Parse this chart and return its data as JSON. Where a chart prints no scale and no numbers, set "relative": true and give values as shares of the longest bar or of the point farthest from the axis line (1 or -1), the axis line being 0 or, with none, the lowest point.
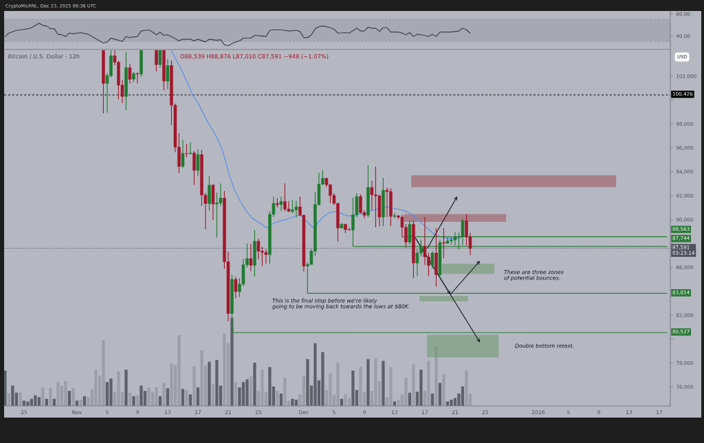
{
  "chart_data": [
    {
      "type": "line",
      "annotations": [
        "CryptoMichNL, Dec 23, 2025 08:36 UTC"
      ],
      "x": [
        "2025-10-22T12:00",
        "2025-10-23T00:00",
        "2025-10-24T00:00",
        "2025-10-24T12:00",
        "2025-10-25T12:00",
        "2025-10-26T00:00",
        "2025-10-26T12:00",
        "2025-10-27T00:00",
        "2025-10-27T12:00",
        "2025-10-28T00:00",
        "2025-10-28T12:00",
        "2025-10-29T00:00",
        "2025-10-29T12:00",
        "2025-10-30T00:00",
        "2025-10-30T12:00",
        "2025-10-31T00:00",
        "2025-10-31T12:00",
        "2025-11-01T12:00",
        "2025-11-02T12:00",
        "2025-11-03T00:00",
        "2025-11-03T12:00",
        "2025-11-04T00:00",
        "2025-11-04T12:00",
        "2025-11-05T00:00",
        "2025-11-05T12:00",
        "2025-11-06T00:00",
        "2025-11-07T00:00",
        "2025-11-07T12:00",
        "2025-11-08T00:00",
        "2025-11-08T12:00",
        "2025-11-09T00:00",
        "2025-11-09T12:00",
        "2025-11-10T12:00",
        "2025-11-11T00:00",
        "2025-11-11T12:00",
        "2025-11-12T00:00",
        "2025-11-12T12:00",
        "2025-11-13T00:00",
        "2025-11-14T00:00",
        "2025-11-14T12:00",
        "2025-11-15T00:00",
        "2025-11-16T00:00",
        "2025-11-16T12:00",
        "2025-11-17T00:00",
        "2025-11-18T00:00",
        "2025-11-18T12:00",
        "2025-11-19T12:00",
        "2025-11-20T00:00",
        "2025-11-20T12:00",
        "2025-11-21T00:00",
        "2025-11-21T12:00",
        "2025-11-22T00:00",
        "2025-11-22T12:00",
        "2025-11-23T00:00",
        "2025-11-24T00:00",
        "2025-11-24T12:00",
        "2025-11-25T12:00",
        "2025-11-26T00:00",
        "2025-11-26T12:00",
        "2025-11-27T00:00",
        "2025-11-28T00:00",
        "2025-11-29T00:00",
        "2025-11-30T00:00",
        "2025-11-30T12:00",
        "2025-12-01T00:00",
        "2025-12-01T12:00",
        "2025-12-02T00:00",
        "2025-12-02T12:00",
        "2025-12-03T00:00",
        "2025-12-03T12:00",
        "2025-12-04T12:00",
        "2025-12-05T00:00",
        "2025-12-05T12:00",
        "2025-12-06T12:00",
        "2025-12-07T00:00",
        "2025-12-08T00:00",
        "2025-12-08T12:00",
        "2025-12-09T00:00",
        "2025-12-09T12:00",
        "2025-12-10T00:00",
        "2025-12-10T12:00",
        "2025-12-11T00:00",
        "2025-12-11T12:00",
        "2025-12-12T00:00",
        "2025-12-12T12:00",
        "2025-12-13T12:00",
        "2025-12-14T00:00",
        "2025-12-14T12:00",
        "2025-12-15T00:00",
        "2025-12-15T12:00",
        "2025-12-16T00:00",
        "2025-12-17T00:00",
        "2025-12-17T12:00",
        "2025-12-18T00:00",
        "2025-12-18T12:00",
        "2025-12-19T00:00",
        "2025-12-20T12:00",
        "2025-12-21T12:00",
        "2025-12-22T00:00",
        "2025-12-22T12:00",
        "2025-12-23T00:00"
      ],
      "series": [
        {
          "color": "#3d4048",
          "values": [
            39,
            45,
            50,
            51,
            53,
            55,
            59,
            63,
            59,
            58,
            53,
            53,
            43,
            42,
            39,
            45,
            44,
            46,
            43,
            39,
            35,
            31,
            27,
            29,
            36,
            34,
            30,
            39,
            37,
            38,
            39,
            49,
            51,
            47,
            42,
            47,
            41,
            42,
            35,
            31,
            34,
            34,
            31,
            34,
            29,
            34,
            32,
            33,
            24,
            22,
            26,
            29,
            31,
            36,
            36,
            41,
            40,
            39,
            50,
            51,
            51,
            49,
            50,
            48,
            37,
            37,
            42,
            53,
            57,
            58,
            55,
            52,
            45,
            46,
            45,
            54,
            49,
            49,
            56,
            54,
            54,
            48,
            55,
            55,
            47,
            47,
            45,
            42,
            46,
            39,
            43,
            41,
            39,
            43,
            39,
            47,
            47,
            49,
            54,
            51,
            45
          ]
        }
      ],
      "xlim": [
        "2025-10-22T09:00",
        "2026-01-18T11:00"
      ],
      "ylim": [
        15.4,
        85.3
      ],
      "yticks": [
        {
          "value": 80,
          "label": "80.00"
        },
        {
          "value": 40,
          "label": "40.00"
        }
      ],
      "tick_labels": "y",
      "bands": [
        {
          "axis": "y",
          "from": 30,
          "to": 70,
          "color": "#979aa3"
        }
      ],
      "ref_lines": [
        {
          "axis": "y",
          "value": 70,
          "color": "#8c8f98",
          "line_style": "dashed"
        },
        {
          "axis": "y",
          "value": 30,
          "color": "#8c8f98",
          "line_style": "dashed"
        }
      ]
    },
    {
      "type": "candlestick",
      "title": "Bitcoin / U.S. Dollar · 12h",
      "subtitle": "O88,539 H88,876 L87,010 C87,591 −948 (−1.07%)",
      "ylabel": "USD",
      "x": [
        "2025-11-04T12:00",
        "2025-11-05T00:00",
        "2025-11-05T12:00",
        "2025-11-06T00:00",
        "2025-11-06T12:00",
        "2025-11-07T00:00",
        "2025-11-07T12:00",
        "2025-11-08T00:00",
        "2025-11-08T12:00",
        "2025-11-09T00:00",
        "2025-11-09T12:00",
        "2025-11-11T12:00",
        "2025-11-12T00:00",
        "2025-11-12T12:00",
        "2025-11-13T00:00",
        "2025-11-13T12:00",
        "2025-11-14T00:00",
        "2025-11-14T12:00",
        "2025-11-15T00:00",
        "2025-11-15T12:00",
        "2025-11-16T00:00",
        "2025-11-16T12:00",
        "2025-11-17T00:00",
        "2025-11-17T12:00",
        "2025-11-18T00:00",
        "2025-11-18T12:00",
        "2025-11-19T00:00",
        "2025-11-19T12:00",
        "2025-11-20T00:00",
        "2025-11-20T12:00",
        "2025-11-21T00:00",
        "2025-11-21T12:00",
        "2025-11-22T00:00",
        "2025-11-22T12:00",
        "2025-11-23T00:00",
        "2025-11-23T12:00",
        "2025-11-24T00:00",
        "2025-11-24T12:00",
        "2025-11-25T00:00",
        "2025-11-25T12:00",
        "2025-11-26T00:00",
        "2025-11-26T12:00",
        "2025-11-27T00:00",
        "2025-11-27T12:00",
        "2025-11-28T00:00",
        "2025-11-28T12:00",
        "2025-11-29T00:00",
        "2025-11-29T12:00",
        "2025-11-30T00:00",
        "2025-11-30T12:00",
        "2025-12-01T00:00",
        "2025-12-01T12:00",
        "2025-12-02T00:00",
        "2025-12-02T12:00",
        "2025-12-03T00:00",
        "2025-12-03T12:00",
        "2025-12-04T00:00",
        "2025-12-04T12:00",
        "2025-12-05T00:00",
        "2025-12-05T12:00",
        "2025-12-06T00:00",
        "2025-12-06T12:00",
        "2025-12-07T00:00",
        "2025-12-07T12:00",
        "2025-12-08T00:00",
        "2025-12-08T12:00",
        "2025-12-09T00:00",
        "2025-12-09T12:00",
        "2025-12-10T00:00",
        "2025-12-10T12:00",
        "2025-12-11T00:00",
        "2025-12-11T12:00",
        "2025-12-12T00:00",
        "2025-12-12T12:00",
        "2025-12-13T00:00",
        "2025-12-13T12:00",
        "2025-12-14T00:00",
        "2025-12-14T12:00",
        "2025-12-15T00:00",
        "2025-12-15T12:00",
        "2025-12-16T00:00",
        "2025-12-16T12:00",
        "2025-12-17T00:00",
        "2025-12-17T12:00",
        "2025-12-18T00:00",
        "2025-12-18T12:00",
        "2025-12-19T00:00",
        "2025-12-19T12:00",
        "2025-12-20T00:00",
        "2025-12-20T12:00",
        "2025-12-21T00:00",
        "2025-12-21T12:00",
        "2025-12-22T00:00",
        "2025-12-22T12:00",
        "2025-12-23T00:00"
      ],
      "ohlc": [
        [
          104150,
          104150,
          98878,
          101381
        ],
        [
          101381,
          102250,
          98938,
          102031
        ],
        [
          102031,
          104150,
          101900,
          103700
        ],
        [
          103700,
          104150,
          102900,
          103154
        ],
        [
          103154,
          103300,
          100061,
          101243
        ],
        [
          101243,
          101700,
          99726,
          100297
        ],
        [
          100297,
          104000,
          99134,
          102700
        ],
        [
          102700,
          103000,
          101381,
          101735
        ],
        [
          101735,
          102327,
          101500,
          102208
        ],
        [
          102208,
          102300,
          101381,
          102169
        ],
        [
          102169,
          104150,
          101950,
          104150
        ],
        [
          104150,
          104150,
          102386,
          102957
        ],
        [
          102957,
          104150,
          102700,
          104150
        ],
        [
          104150,
          104150,
          100790,
          101578
        ],
        [
          101578,
          103410,
          100908,
          102878
        ],
        [
          102878,
          103312,
          97893,
          99568
        ],
        [
          99568,
          99700,
          95627,
          96061
        ],
        [
          96061,
          97243,
          93893,
          94445
        ],
        [
          94445,
          96652,
          94300,
          95528
        ],
        [
          95528,
          96317,
          95200,
          95509
        ],
        [
          95509,
          96455,
          95430,
          95560
        ],
        [
          95560,
          95726,
          92908,
          94110
        ],
        [
          94110,
          95864,
          93657,
          95430
        ],
        [
          95430,
          95825,
          91135,
          92041
        ],
        [
          92041,
          92200,
          89165,
          91332
        ],
        [
          91332,
          93657,
          90741,
          92869
        ],
        [
          92869,
          92950,
          89953,
          91292
        ],
        [
          91292,
          92238,
          88475,
          91391
        ],
        [
          91391,
          93007,
          91135,
          91785
        ],
        [
          91785,
          92376,
          85874,
          86465
        ],
        [
          86465,
          87312,
          81481,
          82131
        ],
        [
          82131,
          85381,
          80537,
          84988
        ],
        [
          84988,
          85224,
          83411,
          83963
        ],
        [
          83963,
          85086,
          83510,
          84593
        ],
        [
          84593,
          86702,
          84400,
          86209
        ],
        [
          86209,
          87982,
          86000,
          86721
        ],
        [
          86721,
          87982,
          85677,
          86169
        ],
        [
          86169,
          89123,
          85224,
          88179
        ],
        [
          88179,
          88400,
          86662,
          87345
        ],
        [
          87345,
          87726,
          86107,
          87250
        ],
        [
          87250,
          87500,
          86300,
          87059
        ],
        [
          87059,
          90700,
          86300,
          90431
        ],
        [
          90431,
          91916,
          90200,
          91345
        ],
        [
          91345,
          91800,
          91000,
          91250
        ],
        [
          91250,
          91916,
          90697,
          91500
        ],
        [
          91500,
          93021,
          90700,
          90869
        ],
        [
          90869,
          91535,
          90621,
          90678
        ],
        [
          90678,
          91631,
          90500,
          90812
        ],
        [
          90812,
          91574,
          90164,
          91059
        ],
        [
          91059,
          91916,
          90300,
          90354
        ],
        [
          90354,
          90400,
          85631,
          86107
        ],
        [
          86107,
          86400,
          85950,
          86240
        ],
        [
          86240,
          87535,
          86202,
          87345
        ],
        [
          87345,
          92297,
          86964,
          91250
        ],
        [
          91250,
          93916,
          91154,
          92964
        ],
        [
          92964,
          94107,
          92869,
          93440
        ],
        [
          93440,
          93500,
          92700,
          92907
        ],
        [
          92907,
          92950,
          91383,
          92012
        ],
        [
          92012,
          92202,
          91231,
          91345
        ],
        [
          91345,
          91400,
          88145,
          89288
        ],
        [
          89288,
          89700,
          89250,
          89593
        ],
        [
          89593,
          89650,
          88869,
          89155
        ],
        [
          89155,
          89300,
          89097,
          89116
        ],
        [
          89116,
          91821,
          87726,
          90393
        ],
        [
          90393,
          92202,
          90202,
          91916
        ],
        [
          91916,
          92107,
          90500,
          90583
        ],
        [
          90583,
          90774,
          90107,
          90354
        ],
        [
          90354,
          94545,
          90202,
          92678
        ],
        [
          92678,
          93250,
          90774,
          92069
        ],
        [
          92069,
          94431,
          89345,
          91974
        ],
        [
          91974,
          92107,
          89440,
          90202
        ],
        [
          90202,
          93478,
          89440,
          92450
        ],
        [
          92450,
          92678,
          90202,
          92335
        ],
        [
          92335,
          92621,
          89440,
          90259
        ],
        [
          90259,
          90545,
          90107,
          90316
        ],
        [
          90316,
          90350,
          90012,
          90202
        ],
        [
          90202,
          90393,
          88488,
          89345
        ],
        [
          89345,
          89631,
          87631,
          88107
        ],
        [
          88107,
          89916,
          87900,
          89592
        ],
        [
          89592,
          89916,
          85097,
          86354
        ],
        [
          86354,
          87535,
          85250,
          87192
        ],
        [
          87192,
          88297,
          86900,
          87764
        ],
        [
          87764,
          90202,
          86202,
          86869
        ],
        [
          86869,
          87200,
          85250,
          86164
        ],
        [
          86164,
          87345,
          85900,
          87192
        ],
        [
          87192,
          89288,
          84392,
          85383
        ],
        [
          85383,
          88297,
          85059,
          88069
        ],
        [
          88069,
          89288,
          86773,
          88012
        ],
        [
          88012,
          88500,
          87950,
          88202
        ],
        [
          88202,
          88526,
          87916,
          88297
        ],
        [
          88297,
          88945,
          87821,
          88526
        ],
        [
          88526,
          88907,
          87535,
          88583
        ],
        [
          88583,
          90050,
          87821,
          89897
        ],
        [
          89897,
          90469,
          87821,
          88539
        ],
        [
          88539,
          88876,
          87010,
          87591
        ]
      ],
      "colors": [
        "#a3162b",
        "#1f7a30",
        "#1f7a30",
        "#a3162b",
        "#a3162b",
        "#a3162b",
        "#1f7a30",
        "#a3162b",
        "#1f7a30",
        "#a3162b",
        "#1f7a30",
        "#a3162b",
        "#1f7a30",
        "#a3162b",
        "#1f7a30",
        "#a3162b",
        "#a3162b",
        "#a3162b",
        "#1f7a30",
        "#a3162b",
        "#1f7a30",
        "#a3162b",
        "#1f7a30",
        "#a3162b",
        "#a3162b",
        "#1f7a30",
        "#a3162b",
        "#1f7a30",
        "#1f7a30",
        "#a3162b",
        "#a3162b",
        "#1f7a30",
        "#a3162b",
        "#1f7a30",
        "#1f7a30",
        "#1f7a30",
        "#a3162b",
        "#1f7a30",
        "#a3162b",
        "#a3162b",
        "#a3162b",
        "#1f7a30",
        "#1f7a30",
        "#a3162b",
        "#1f7a30",
        "#a3162b",
        "#a3162b",
        "#1f7a30",
        "#1f7a30",
        "#a3162b",
        "#a3162b",
        "#1f7a30",
        "#1f7a30",
        "#1f7a30",
        "#1f7a30",
        "#1f7a30",
        "#a3162b",
        "#a3162b",
        "#a3162b",
        "#a3162b",
        "#1f7a30",
        "#a3162b",
        "#a3162b",
        "#1f7a30",
        "#1f7a30",
        "#a3162b",
        "#a3162b",
        "#1f7a30",
        "#a3162b",
        "#a3162b",
        "#a3162b",
        "#1f7a30",
        "#a3162b",
        "#a3162b",
        "#1f7a30",
        "#a3162b",
        "#a3162b",
        "#a3162b",
        "#1f7a30",
        "#a3162b",
        "#1f7a30",
        "#1f7a30",
        "#a3162b",
        "#a3162b",
        "#1f7a30",
        "#a3162b",
        "#1f7a30",
        "#a3162b",
        "#1f7a30",
        "#1f7a30",
        "#1f7a30",
        "#1f7a30",
        "#1f7a30",
        "#a3162b",
        "#a3162b"
      ],
      "series": [
        {
          "type": "line",
          "color": "#5a8ee8",
          "x": [
            "2025-11-13T11:00",
            "2025-11-14T23:00",
            "2025-11-16T05:00",
            "2025-11-17T04:00",
            "2025-11-18T02:00",
            "2025-11-19T05:00",
            "2025-11-20T03:00",
            "2025-11-20T14:00",
            "2025-11-21T02:00",
            "2025-11-21T20:00",
            "2025-11-22T15:00",
            "2025-11-23T10:00",
            "2025-11-24T05:00",
            "2025-11-25T09:00",
            "2025-11-26T03:00",
            "2025-11-26T18:00",
            "2025-11-27T12:00",
            "2025-11-28T10:00",
            "2025-11-29T07:00",
            "2025-11-30T05:00",
            "2025-11-30T16:00",
            "2025-12-01T03:00",
            "2025-12-01T18:00",
            "2025-12-02T07:00",
            "2025-12-02T19:00",
            "2025-12-03T13:00",
            "2025-12-04T11:00",
            "2025-12-05T02:00",
            "2025-12-05T16:00",
            "2025-12-06T07:00",
            "2025-12-06T21:00",
            "2025-12-07T12:00",
            "2025-12-08T06:00",
            "2025-12-09T00:00",
            "2025-12-09T22:00",
            "2025-12-10T12:00",
            "2025-12-11T03:00",
            "2025-12-12T01:00",
            "2025-12-12T15:00",
            "2025-12-13T12:00",
            "2025-12-14T11:00",
            "2025-12-15T05:00",
            "2025-12-16T07:00",
            "2025-12-17T04:00",
            "2025-12-18T02:00",
            "2025-12-19T00:00",
            "2025-12-20T05:00",
            "2025-12-21T03:00",
            "2025-12-22T01:00"
          ],
          "values": [
            104150,
            102350,
            100550,
            99550,
            98400,
            97200,
            96000,
            95050,
            93850,
            92450,
            91500,
            90700,
            90100,
            89600,
            89300,
            89600,
            89800,
            89950,
            90150,
            90350,
            90300,
            90000,
            89600,
            89300,
            89650,
            90200,
            90600,
            90650,
            90600,
            90400,
            90300,
            90300,
            90450,
            90500,
            90750,
            90850,
            90950,
            91050,
            90950,
            90850,
            90700,
            90450,
            89900,
            89350,
            88850,
            88550,
            88400,
            88400,
            88550
          ]
        },
        {
          "type": "line",
          "color": "#2d7a39",
          "x": [
            "2025-12-14T03:00",
            "2026-01-18T00:00"
          ],
          "values": [
            88563,
            88563
          ],
          "value_labels": [
            null,
            "88,563"
          ]
        },
        {
          "type": "line",
          "color": "#2d7a39",
          "x": [
            "2025-12-07T15:00",
            "2026-01-18T00:00"
          ],
          "values": [
            87744,
            87744
          ],
          "value_labels": [
            null,
            "87,744"
          ]
        },
        {
          "type": "line",
          "color": "#2d7a39",
          "x": [
            "2025-12-01T12:00",
            "2025-12-01T12:00",
            "2026-01-18T00:00"
          ],
          "values": [
            85900,
            83814,
            83814
          ],
          "value_labels": [
            null,
            null,
            "83,814"
          ]
        },
        {
          "type": "line",
          "color": "#2d7a39",
          "x": [
            "2025-11-21T15:00",
            "2026-01-18T00:00"
          ],
          "values": [
            80537,
            80537
          ],
          "value_labels": [
            null,
            "80,537"
          ]
        },
        {
          "type": "line",
          "color": "#9b4851",
          "x": [
            "2025-12-15T05:00",
            "2026-01-11T07:00"
          ],
          "values": [
            null,
            null
          ],
          "lower": [
            92700,
            92700
          ],
          "upper": [
            93700,
            93700
          ]
        },
        {
          "type": "line",
          "color": "#9b4851",
          "x": [
            "2025-12-14T05:00",
            "2025-12-27T18:00"
          ],
          "values": [
            null,
            null
          ],
          "lower": [
            89800,
            89800
          ],
          "upper": [
            90450,
            90450
          ]
        },
        {
          "type": "line",
          "color": "#659465",
          "x": [
            "2025-12-19T07:00",
            "2025-12-26T05:00"
          ],
          "values": [
            null,
            null
          ],
          "lower": [
            85450,
            85450
          ],
          "upper": [
            86300,
            86300
          ]
        },
        {
          "type": "line",
          "color": "#659465",
          "x": [
            "2025-12-16T07:00",
            "2025-12-22T17:00"
          ],
          "values": [
            null,
            null
          ],
          "lower": [
            83150,
            83150
          ],
          "upper": [
            83600,
            83600
          ]
        },
        {
          "type": "line",
          "color": "#659465",
          "x": [
            "2025-12-17T07:00",
            "2025-12-26T18:00"
          ],
          "values": [
            null,
            null
          ],
          "lower": [
            78450,
            78450
          ],
          "upper": [
            80350,
            80350
          ]
        }
      ],
      "xlim": [
        "2025-10-22T09:00",
        "2026-01-18T11:00"
      ],
      "ylim": [
        74400,
        104170
      ],
      "xticks": [
        {
          "value": "2025-10-25",
          "label": "25"
        },
        {
          "value": "2025-11-01",
          "label": "Nov"
        },
        {
          "value": "2025-11-05",
          "label": "5"
        },
        {
          "value": "2025-11-09",
          "label": "9"
        },
        {
          "value": "2025-11-13",
          "label": "13"
        },
        {
          "value": "2025-11-17",
          "label": "17"
        },
        {
          "value": "2025-11-21",
          "label": "21"
        },
        {
          "value": "2025-11-25",
          "label": "25"
        },
        {
          "value": "2025-12-01",
          "label": "Dec"
        },
        {
          "value": "2025-12-05",
          "label": "5"
        },
        {
          "value": "2025-12-09",
          "label": "9"
        },
        {
          "value": "2025-12-13",
          "label": "13"
        },
        {
          "value": "2025-12-17",
          "label": "17"
        },
        {
          "value": "2025-12-21",
          "label": "21"
        },
        {
          "value": "2025-12-25",
          "label": "25"
        },
        {
          "value": "2026-01-01",
          "label": "2026"
        },
        {
          "value": "2026-01-05",
          "label": "5"
        },
        {
          "value": "2026-01-09",
          "label": "9"
        },
        {
          "value": "2026-01-13",
          "label": "13"
        },
        {
          "value": "2026-01-17",
          "label": "17"
        }
      ],
      "yticks": [
        {
          "value": 76000,
          "label": "76,000"
        },
        {
          "value": 78000,
          "label": "78,000"
        },
        {
          "value": 80000,
          "label": null
        },
        {
          "value": 82000,
          "label": "82,000"
        },
        {
          "value": 84000,
          "label": null
        },
        {
          "value": 86000,
          "label": "86,000"
        },
        {
          "value": 88000,
          "label": null
        },
        {
          "value": 90000,
          "label": "90,000"
        },
        {
          "value": 92000,
          "label": "92,000"
        },
        {
          "value": 94000,
          "label": "94,000"
        },
        {
          "value": 96000,
          "label": "96,000"
        },
        {
          "value": 98000,
          "label": "98,000"
        },
        {
          "value": 100000,
          "label": null
        },
        {
          "value": 102000,
          "label": "102,000"
        }
      ],
      "ref_lines": [
        {
          "axis": "y",
          "value": 100426,
          "label": "100,426",
          "color": "#000000",
          "line_style": "dashed"
        },
        {
          "axis": "y",
          "value": 87591,
          "label": "87,591\n03:23:14",
          "color": "#50535e",
          "line_style": "dotted"
        }
      ],
      "annotations": [
        "This is the final stop before we're likely\ngoing to be moving back towards the lows at $80K.",
        "These are three zones\nof potential bounces.",
        "Double bottom retest."
      ]
    },
    {
      "type": "bar",
      "relative": true,
      "tick_labels": false,
      "xlim": [
        "2025-10-22T09:00",
        "2026-01-18T11:00"
      ],
      "x": [
        "2025-10-22T12:00",
        "2025-10-23T00:00",
        "2025-10-23T12:00",
        "2025-10-24T00:00",
        "2025-10-24T12:00",
        "2025-10-25T00:00",
        "2025-10-25T12:00",
        "2025-10-26T00:00",
        "2025-10-26T12:00",
        "2025-10-27T00:00",
        "2025-10-27T12:00",
        "2025-10-28T00:00",
        "2025-10-28T12:00",
        "2025-10-29T00:00",
        "2025-10-29T12:00",
        "2025-10-30T00:00",
        "2025-10-30T12:00",
        "2025-10-31T00:00",
        "2025-10-31T12:00",
        "2025-11-01T00:00",
        "2025-11-01T12:00",
        "2025-11-02T00:00",
        "2025-11-02T12:00",
        "2025-11-03T00:00",
        "2025-11-03T12:00",
        "2025-11-04T00:00",
        "2025-11-04T12:00",
        "2025-11-05T00:00",
        "2025-11-05T12:00",
        "2025-11-06T00:00",
        "2025-11-06T12:00",
        "2025-11-07T00:00",
        "2025-11-07T12:00",
        "2025-11-08T00:00",
        "2025-11-08T12:00",
        "2025-11-09T00:00",
        "2025-11-09T12:00",
        "2025-11-10T00:00",
        "2025-11-10T12:00",
        "2025-11-11T00:00",
        "2025-11-11T12:00",
        "2025-11-12T00:00",
        "2025-11-12T12:00",
        "2025-11-13T00:00",
        "2025-11-13T12:00",
        "2025-11-14T00:00",
        "2025-11-14T12:00",
        "2025-11-15T00:00",
        "2025-11-15T12:00",
        "2025-11-16T00:00",
        "2025-11-16T12:00",
        "2025-11-17T00:00",
        "2025-11-17T12:00",
        "2025-11-18T00:00",
        "2025-11-18T12:00",
        "2025-11-19T00:00",
        "2025-11-19T12:00",
        "2025-11-20T00:00",
        "2025-11-20T12:00",
        "2025-11-21T00:00",
        "2025-11-21T12:00",
        "2025-11-22T00:00",
        "2025-11-22T12:00",
        "2025-11-23T00:00",
        "2025-11-23T12:00",
        "2025-11-24T00:00",
        "2025-11-24T12:00",
        "2025-11-25T00:00",
        "2025-11-25T12:00",
        "2025-11-26T00:00",
        "2025-11-26T12:00",
        "2025-11-27T00:00",
        "2025-11-27T12:00",
        "2025-11-28T00:00",
        "2025-11-28T12:00",
        "2025-11-29T00:00",
        "2025-11-29T12:00",
        "2025-11-30T00:00",
        "2025-11-30T12:00",
        "2025-12-01T00:00",
        "2025-12-01T12:00",
        "2025-12-02T00:00",
        "2025-12-02T12:00",
        "2025-12-03T00:00",
        "2025-12-03T12:00",
        "2025-12-04T00:00",
        "2025-12-04T12:00",
        "2025-12-05T00:00",
        "2025-12-05T12:00",
        "2025-12-06T00:00",
        "2025-12-06T12:00",
        "2025-12-07T00:00",
        "2025-12-07T12:00",
        "2025-12-08T00:00",
        "2025-12-08T12:00",
        "2025-12-09T00:00",
        "2025-12-09T12:00",
        "2025-12-10T00:00",
        "2025-12-10T12:00",
        "2025-12-11T00:00",
        "2025-12-11T12:00",
        "2025-12-12T00:00",
        "2025-12-12T12:00",
        "2025-12-13T00:00",
        "2025-12-13T12:00",
        "2025-12-14T00:00",
        "2025-12-14T12:00",
        "2025-12-15T00:00",
        "2025-12-15T12:00",
        "2025-12-16T00:00",
        "2025-12-16T12:00",
        "2025-12-17T00:00",
        "2025-12-17T12:00",
        "2025-12-18T00:00",
        "2025-12-18T12:00",
        "2025-12-19T00:00",
        "2025-12-19T12:00",
        "2025-12-20T00:00",
        "2025-12-20T12:00",
        "2025-12-21T00:00",
        "2025-12-21T12:00",
        "2025-12-22T00:00",
        "2025-12-22T12:00",
        "2025-12-23T00:00"
      ],
      "values": [
        0.4,
        0.14,
        0.23,
        0.15,
        0.15,
        0.06,
        0.05,
        0.08,
        0.12,
        0.1,
        0.21,
        0.08,
        0.2,
        0.08,
        0.27,
        0.23,
        0.28,
        0.17,
        0.2,
        0.06,
        0.07,
        0.11,
        0.1,
        0.19,
        0.41,
        0.34,
        0.74,
        0.27,
        0.31,
        0.16,
        0.39,
        0.16,
        0.41,
        0.15,
        0.11,
        0.12,
        0.23,
        0.17,
        0.21,
        0.16,
        0.21,
        0.11,
        0.26,
        0.2,
        0.48,
        0.46,
        0.8,
        0.19,
        0.18,
        0.13,
        0.45,
        0.21,
        0.63,
        0.46,
        0.5,
        0.25,
        0.52,
        0.23,
        0.82,
        0.71,
        1.0,
        0.27,
        0.21,
        0.27,
        0.3,
        0.34,
        0.49,
        0.17,
        0.41,
        0.16,
        0.44,
        0.22,
        0.17,
        0.14,
        0.32,
        0.06,
        0.08,
        0.07,
        0.13,
        0.34,
        0.53,
        0.23,
        0.71,
        0.29,
        0.61,
        0.18,
        0.37,
        0.13,
        0.49,
        0.08,
        0.13,
        0.09,
        0.4,
        0.18,
        0.44,
        0.16,
        0.53,
        0.17,
        0.54,
        0.28,
        0.51,
        0.1,
        0.44,
        0.05,
        0.07,
        0.13,
        0.32,
        0.15,
        0.47,
        0.16,
        0.41,
        0.17,
        0.51,
        0.14,
        0.67,
        0.26,
        0.36,
        0.05,
        0.07,
        0.09,
        0.14,
        0.22,
        0.4,
        0.14
      ],
      "colors": [
        "#5e6169",
        "#9c9fa8",
        "#5e6169",
        "#5e6169",
        "#9c9fa8",
        "#5e6169",
        "#5e6169",
        "#5e6169",
        "#5e6169",
        "#5e6169",
        "#9c9fa8",
        "#5e6169",
        "#9c9fa8",
        "#5e6169",
        "#9c9fa8",
        "#9c9fa8",
        "#9c9fa8",
        "#5e6169",
        "#9c9fa8",
        "#5e6169",
        "#9c9fa8",
        "#5e6169",
        "#9c9fa8",
        "#9c9fa8",
        "#9c9fa8",
        "#9c9fa8",
        "#9c9fa8",
        "#5e6169",
        "#5e6169",
        "#9c9fa8",
        "#9c9fa8",
        "#9c9fa8",
        "#5e6169",
        "#9c9fa8",
        "#5e6169",
        "#9c9fa8",
        "#5e6169",
        "#5e6169",
        "#9c9fa8",
        "#9c9fa8",
        "#9c9fa8",
        "#5e6169",
        "#9c9fa8",
        "#5e6169",
        "#9c9fa8",
        "#9c9fa8",
        "#9c9fa8",
        "#5e6169",
        "#9c9fa8",
        "#5e6169",
        "#9c9fa8",
        "#5e6169",
        "#9c9fa8",
        "#9c9fa8",
        "#5e6169",
        "#9c9fa8",
        "#5e6169",
        "#5e6169",
        "#9c9fa8",
        "#9c9fa8",
        "#5e6169",
        "#9c9fa8",
        "#5e6169",
        "#5e6169",
        "#5e6169",
        "#9c9fa8",
        "#5e6169",
        "#9c9fa8",
        "#9c9fa8",
        "#9c9fa8",
        "#5e6169",
        "#5e6169",
        "#9c9fa8",
        "#5e6169",
        "#9c9fa8",
        "#9c9fa8",
        "#5e6169",
        "#5e6169",
        "#9c9fa8",
        "#9c9fa8",
        "#5e6169",
        "#5e6169",
        "#5e6169",
        "#5e6169",
        "#5e6169",
        "#9c9fa8",
        "#9c9fa8",
        "#9c9fa8",
        "#9c9fa8",
        "#5e6169",
        "#9c9fa8",
        "#9c9fa8",
        "#5e6169",
        "#5e6169",
        "#9c9fa8",
        "#9c9fa8",
        "#5e6169",
        "#9c9fa8",
        "#9c9fa8",
        "#9c9fa8",
        "#5e6169",
        "#9c9fa8",
        "#9c9fa8",
        "#5e6169",
        "#9c9fa8",
        "#9c9fa8",
        "#9c9fa8",
        "#5e6169",
        "#9c9fa8",
        "#5e6169",
        "#5e6169",
        "#9c9fa8",
        "#9c9fa8",
        "#5e6169",
        "#9c9fa8",
        "#5e6169",
        "#9c9fa8",
        "#5e6169",
        "#5e6169",
        "#5e6169",
        "#5e6169",
        "#5e6169",
        "#9c9fa8",
        "#9c9fa8"
      ]
    }
  ]
}
